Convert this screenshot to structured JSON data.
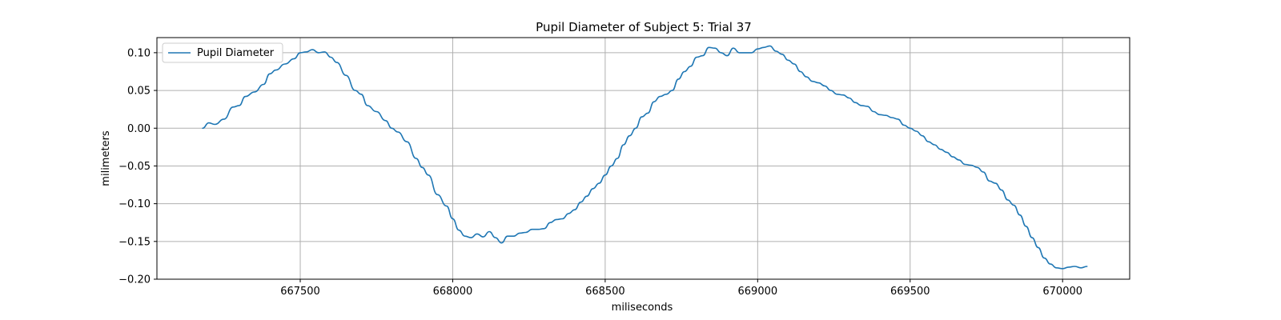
{
  "chart_data": {
    "type": "line",
    "title": "Pupil Diameter of Subject 5: Trial 37",
    "xlabel": "miliseconds",
    "ylabel": "milimeters",
    "xlim": [
      667030,
      670220
    ],
    "ylim": [
      -0.2,
      0.12
    ],
    "grid": true,
    "legend_position": "top-left",
    "x_ticks": [
      667500,
      668000,
      668500,
      669000,
      669500,
      670000
    ],
    "y_ticks": [
      0.1,
      0.05,
      0.0,
      -0.05,
      -0.1,
      -0.15,
      -0.2
    ],
    "x_tick_labels": [
      "667500",
      "668000",
      "668500",
      "669000",
      "669500",
      "670000"
    ],
    "y_tick_labels": [
      "0.10",
      "0.05",
      "0.00",
      "−0.05",
      "−0.10",
      "−0.15",
      "−0.20"
    ],
    "series": [
      {
        "name": "Pupil Diameter",
        "color": "#1f77b4",
        "x": [
          667180,
          667200,
          667220,
          667250,
          667280,
          667300,
          667320,
          667350,
          667380,
          667400,
          667420,
          667450,
          667480,
          667500,
          667520,
          667540,
          667560,
          667580,
          667600,
          667620,
          667650,
          667680,
          667700,
          667720,
          667750,
          667780,
          667800,
          667820,
          667850,
          667880,
          667900,
          667920,
          667950,
          667980,
          668000,
          668020,
          668040,
          668060,
          668080,
          668100,
          668120,
          668140,
          668160,
          668180,
          668200,
          668220,
          668240,
          668260,
          668280,
          668300,
          668320,
          668340,
          668360,
          668380,
          668400,
          668420,
          668440,
          668460,
          668480,
          668500,
          668520,
          668540,
          668560,
          668580,
          668600,
          668620,
          668640,
          668660,
          668680,
          668700,
          668720,
          668740,
          668760,
          668780,
          668800,
          668820,
          668840,
          668860,
          668880,
          668900,
          668920,
          668940,
          668960,
          668980,
          669000,
          669020,
          669040,
          669060,
          669080,
          669100,
          669120,
          669140,
          669160,
          669180,
          669200,
          669220,
          669240,
          669260,
          669280,
          669300,
          669320,
          669340,
          669360,
          669380,
          669400,
          669420,
          669440,
          669460,
          669480,
          669500,
          669520,
          669540,
          669560,
          669580,
          669600,
          669620,
          669640,
          669660,
          669680,
          669700,
          669720,
          669740,
          669760,
          669780,
          669800,
          669820,
          669840,
          669860,
          669880,
          669900,
          669920,
          669940,
          669960,
          669980,
          670000,
          670020,
          670040,
          670060,
          670080
        ],
        "y": [
          0.0,
          0.007,
          0.005,
          0.012,
          0.028,
          0.03,
          0.042,
          0.048,
          0.058,
          0.072,
          0.077,
          0.085,
          0.092,
          0.1,
          0.101,
          0.104,
          0.1,
          0.101,
          0.094,
          0.087,
          0.07,
          0.05,
          0.045,
          0.03,
          0.022,
          0.01,
          0.0,
          -0.005,
          -0.018,
          -0.04,
          -0.052,
          -0.062,
          -0.088,
          -0.103,
          -0.12,
          -0.135,
          -0.143,
          -0.145,
          -0.14,
          -0.144,
          -0.137,
          -0.145,
          -0.152,
          -0.143,
          -0.143,
          -0.139,
          -0.138,
          -0.134,
          -0.134,
          -0.133,
          -0.125,
          -0.121,
          -0.12,
          -0.113,
          -0.108,
          -0.098,
          -0.09,
          -0.08,
          -0.073,
          -0.062,
          -0.05,
          -0.04,
          -0.022,
          -0.01,
          0.0,
          0.015,
          0.02,
          0.035,
          0.042,
          0.045,
          0.05,
          0.065,
          0.075,
          0.082,
          0.094,
          0.096,
          0.107,
          0.106,
          0.1,
          0.096,
          0.106,
          0.1,
          0.1,
          0.1,
          0.105,
          0.107,
          0.109,
          0.102,
          0.098,
          0.09,
          0.085,
          0.075,
          0.068,
          0.062,
          0.06,
          0.056,
          0.05,
          0.045,
          0.044,
          0.04,
          0.034,
          0.03,
          0.029,
          0.022,
          0.018,
          0.017,
          0.014,
          0.012,
          0.004,
          0.0,
          -0.004,
          -0.01,
          -0.018,
          -0.022,
          -0.028,
          -0.032,
          -0.038,
          -0.042,
          -0.048,
          -0.049,
          -0.052,
          -0.058,
          -0.07,
          -0.073,
          -0.082,
          -0.095,
          -0.102,
          -0.115,
          -0.13,
          -0.145,
          -0.158,
          -0.172,
          -0.18,
          -0.185,
          -0.186,
          -0.184,
          -0.183,
          -0.185,
          -0.183
        ]
      }
    ]
  }
}
